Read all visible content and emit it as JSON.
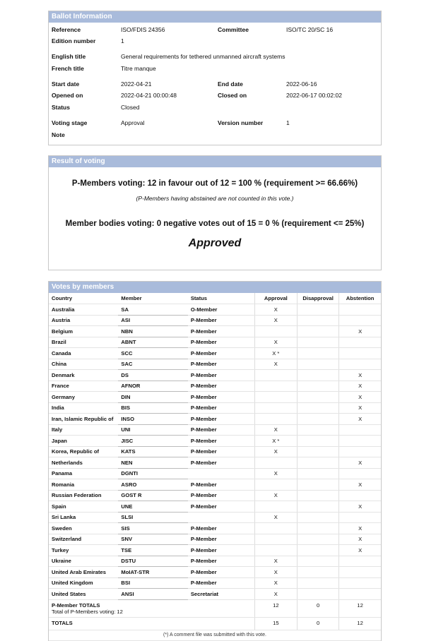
{
  "ballot": {
    "title": "Ballot Information",
    "reference_label": "Reference",
    "reference": "ISO/FDIS 24356",
    "committee_label": "Committee",
    "committee": "ISO/TC 20/SC 16",
    "edition_label": "Edition number",
    "edition": "1",
    "english_title_label": "English title",
    "english_title": "General requirements for tethered unmanned aircraft systems",
    "french_title_label": "French title",
    "french_title": "Titre manque",
    "start_label": "Start date",
    "start": "2022-04-21",
    "end_label": "End date",
    "end": "2022-06-16",
    "opened_label": "Opened on",
    "opened": "2022-04-21 00:00:48",
    "closed_label": "Closed on",
    "closed": "2022-06-17 00:02:02",
    "status_label": "Status",
    "status": "Closed",
    "stage_label": "Voting stage",
    "stage": "Approval",
    "version_label": "Version number",
    "version": "1",
    "note_label": "Note"
  },
  "result": {
    "title": "Result of voting",
    "p_members": "P-Members voting: 12 in favour out of 12 = 100 % (requirement >= 66.66%)",
    "abstain_note": "(P-Members having abstained are not counted in this vote.)",
    "member_bodies": "Member bodies voting: 0 negative votes out of 15 = 0 % (requirement <= 25%)",
    "outcome": "Approved"
  },
  "votes": {
    "title": "Votes by members",
    "headers": [
      "Country",
      "Member",
      "Status",
      "Approval",
      "Disapproval",
      "Abstention"
    ],
    "rows": [
      [
        "Australia",
        "SA",
        "O-Member",
        "X",
        "",
        ""
      ],
      [
        "Austria",
        "ASI",
        "P-Member",
        "X",
        "",
        ""
      ],
      [
        "Belgium",
        "NBN",
        "P-Member",
        "",
        "",
        "X"
      ],
      [
        "Brazil",
        "ABNT",
        "P-Member",
        "X",
        "",
        ""
      ],
      [
        "Canada",
        "SCC",
        "P-Member",
        "X *",
        "",
        ""
      ],
      [
        "China",
        "SAC",
        "P-Member",
        "X",
        "",
        ""
      ],
      [
        "Denmark",
        "DS",
        "P-Member",
        "",
        "",
        "X"
      ],
      [
        "France",
        "AFNOR",
        "P-Member",
        "",
        "",
        "X"
      ],
      [
        "Germany",
        "DIN",
        "P-Member",
        "",
        "",
        "X"
      ],
      [
        "India",
        "BIS",
        "P-Member",
        "",
        "",
        "X"
      ],
      [
        "Iran, Islamic Republic of",
        "INSO",
        "P-Member",
        "",
        "",
        "X"
      ],
      [
        "Italy",
        "UNI",
        "P-Member",
        "X",
        "",
        ""
      ],
      [
        "Japan",
        "JISC",
        "P-Member",
        "X *",
        "",
        ""
      ],
      [
        "Korea, Republic of",
        "KATS",
        "P-Member",
        "X",
        "",
        ""
      ],
      [
        "Netherlands",
        "NEN",
        "P-Member",
        "",
        "",
        "X"
      ],
      [
        "Panama",
        "DGNTI",
        "",
        "X",
        "",
        ""
      ],
      [
        "Romania",
        "ASRO",
        "P-Member",
        "",
        "",
        "X"
      ],
      [
        "Russian Federation",
        "GOST R",
        "P-Member",
        "X",
        "",
        ""
      ],
      [
        "Spain",
        "UNE",
        "P-Member",
        "",
        "",
        "X"
      ],
      [
        "Sri Lanka",
        "SLSI",
        "",
        "X",
        "",
        ""
      ],
      [
        "Sweden",
        "SIS",
        "P-Member",
        "",
        "",
        "X"
      ],
      [
        "Switzerland",
        "SNV",
        "P-Member",
        "",
        "",
        "X"
      ],
      [
        "Turkey",
        "TSE",
        "P-Member",
        "",
        "",
        "X"
      ],
      [
        "Ukraine",
        "DSTU",
        "P-Member",
        "X",
        "",
        ""
      ],
      [
        "United Arab Emirates",
        "MoIAT-STR",
        "P-Member",
        "X",
        "",
        ""
      ],
      [
        "United Kingdom",
        "BSI",
        "P-Member",
        "X",
        "",
        ""
      ],
      [
        "United States",
        "ANSI",
        "Secretariat",
        "X",
        "",
        ""
      ]
    ],
    "p_totals_label": "P-Member TOTALS",
    "p_totals_sub": "Total of P-Members voting: 12",
    "p_totals": [
      "12",
      "0",
      "12"
    ],
    "totals_label": "TOTALS",
    "totals": [
      "15",
      "0",
      "12"
    ],
    "footnote": "(*) A comment file was submitted with this vote."
  }
}
